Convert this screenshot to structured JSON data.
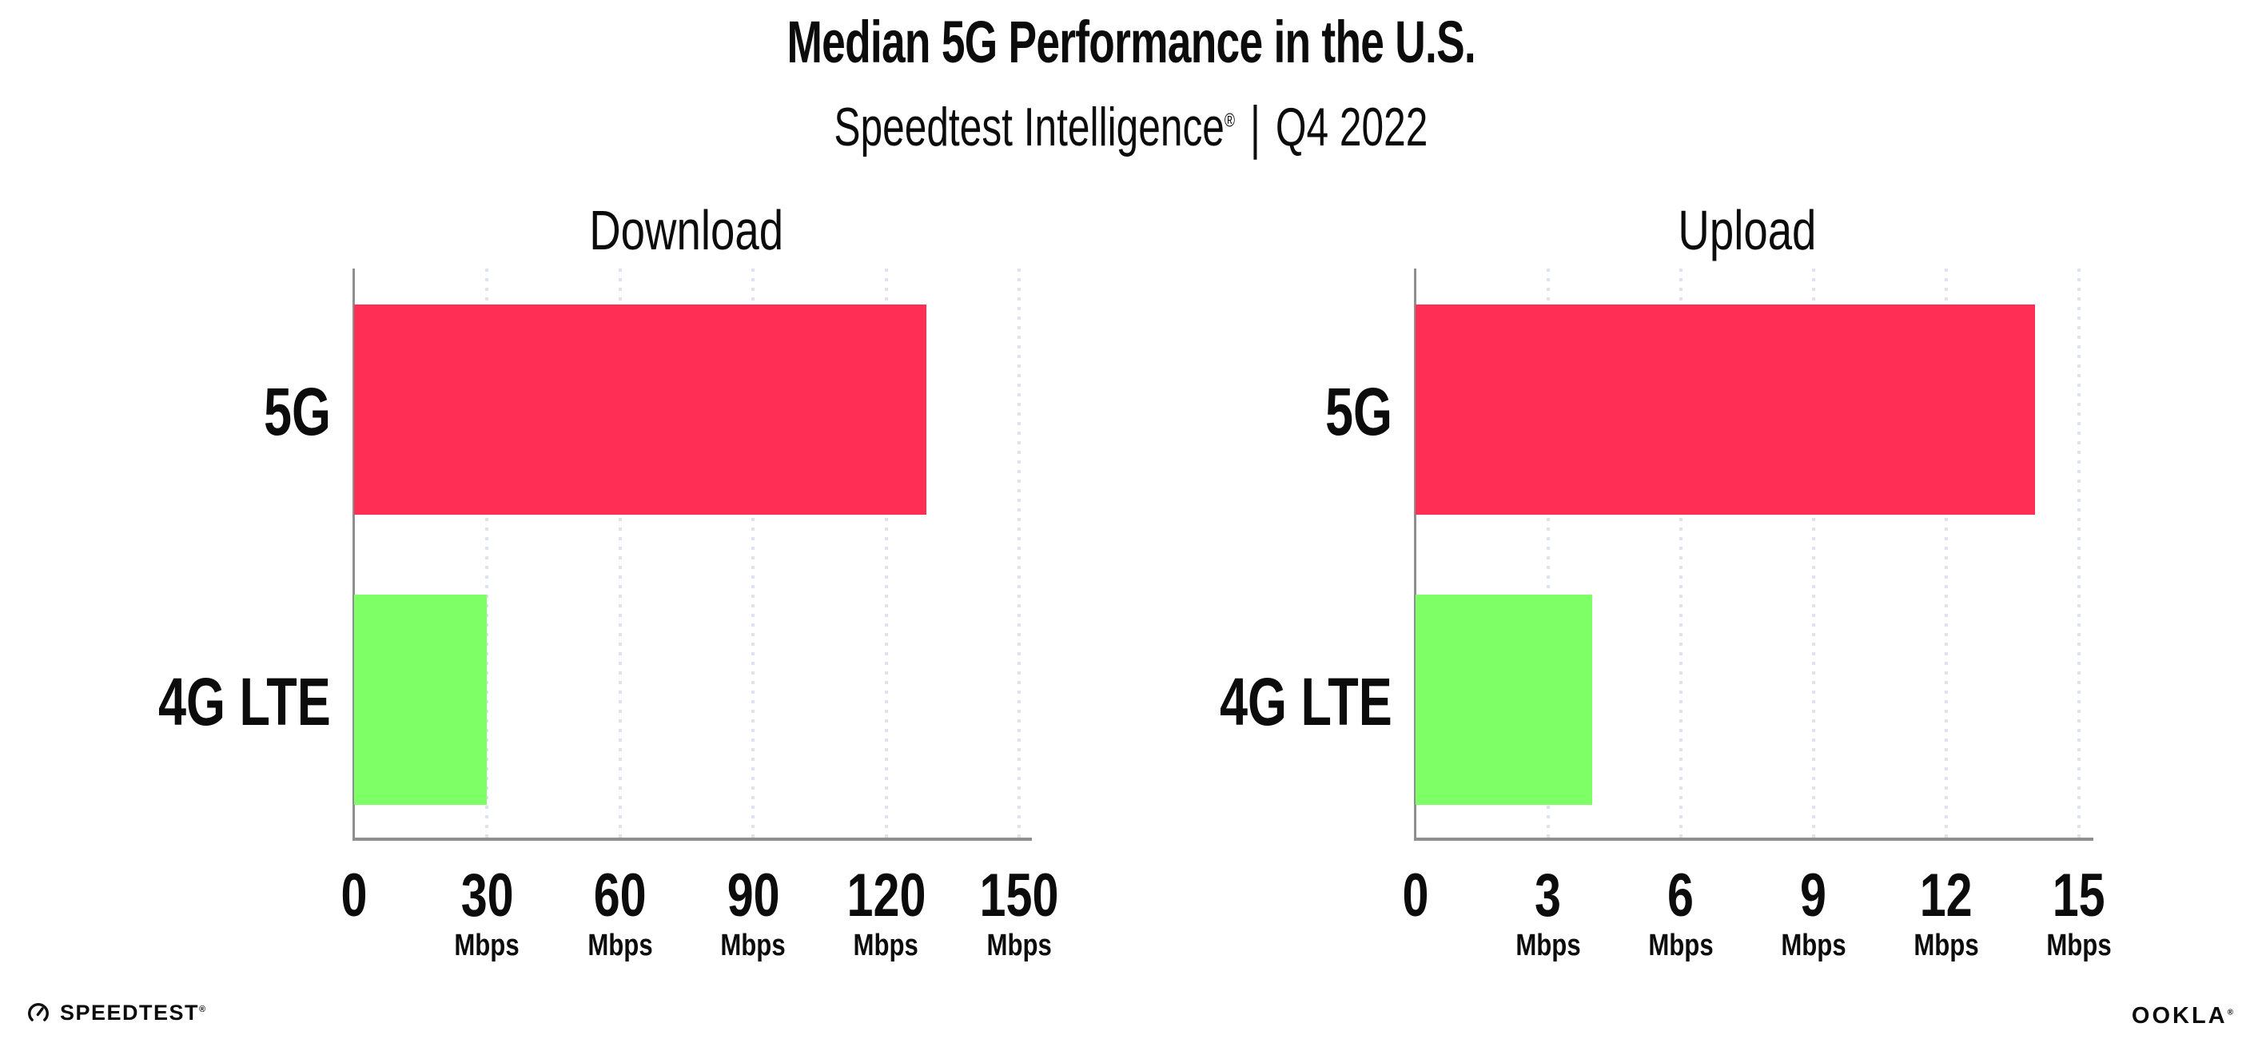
{
  "header": {
    "title": "Median 5G Performance in the U.S.",
    "subtitle_brand": "Speedtest Intelligence",
    "subtitle_registered": "®",
    "subtitle_separator": "|",
    "subtitle_period": "Q4 2022"
  },
  "chart_data": [
    {
      "type": "bar",
      "orientation": "horizontal",
      "title": "Download",
      "categories": [
        "5G",
        "4G LTE"
      ],
      "values": [
        129,
        30
      ],
      "unit": "Mbps",
      "xlim": [
        0,
        150
      ],
      "xticks": [
        0,
        30,
        60,
        90,
        120,
        150
      ],
      "tick_unit": "Mbps",
      "bar_colors": [
        "#ff2e55",
        "#7eff66"
      ],
      "grid": "dotted-vertical",
      "legend": "none"
    },
    {
      "type": "bar",
      "orientation": "horizontal",
      "title": "Upload",
      "categories": [
        "5G",
        "4G LTE"
      ],
      "values": [
        14,
        4
      ],
      "unit": "Mbps",
      "xlim": [
        0,
        15
      ],
      "xticks": [
        0,
        3,
        6,
        9,
        12,
        15
      ],
      "tick_unit": "Mbps",
      "bar_colors": [
        "#ff2e55",
        "#7eff66"
      ],
      "grid": "dotted-vertical",
      "legend": "none"
    }
  ],
  "footer": {
    "speedtest_icon": "gauge-icon",
    "speedtest_logo_text": "SPEEDTEST",
    "speedtest_trademark": "®",
    "ookla_logo_text": "OOKLA",
    "ookla_trademark": "®"
  },
  "colors": {
    "background": "#ffffff",
    "text": "#0c0c0c",
    "bar_5g": "#ff2e55",
    "bar_4g_lte": "#7eff66",
    "axis": "#8f8f8f",
    "gridline": "#dfe1ec"
  }
}
